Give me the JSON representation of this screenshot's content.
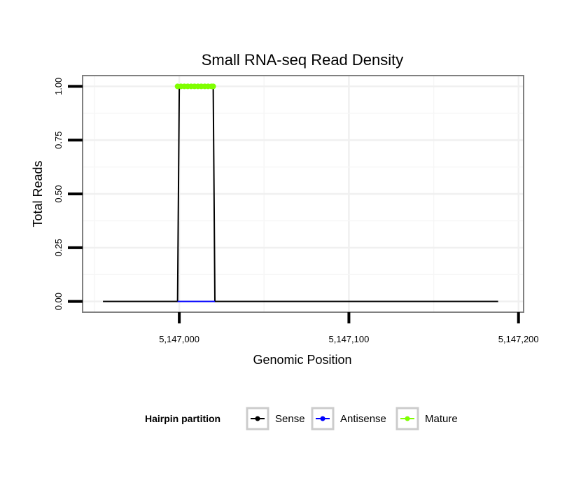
{
  "chart_data": {
    "type": "line",
    "title": "Small RNA-seq Read Density",
    "xlabel": "Genomic Position",
    "ylabel": "Total Reads",
    "xlim": [
      5146943,
      5147203
    ],
    "ylim": [
      -0.05,
      1.05
    ],
    "x_ticks": [
      {
        "value": 5147000,
        "label": "5,147,000"
      },
      {
        "value": 5147100,
        "label": "5,147,100"
      },
      {
        "value": 5147200,
        "label": "5,147,200"
      }
    ],
    "y_ticks": [
      {
        "value": 0.0,
        "label": "0.00"
      },
      {
        "value": 0.25,
        "label": "0.25"
      },
      {
        "value": 0.5,
        "label": "0.50"
      },
      {
        "value": 0.75,
        "label": "0.75"
      },
      {
        "value": 1.0,
        "label": "1.00"
      }
    ],
    "grid": true,
    "legend": {
      "title": "Hairpin partition",
      "position": "bottom",
      "entries": [
        {
          "name": "Sense",
          "color": "#000000"
        },
        {
          "name": "Antisense",
          "color": "#0000ff"
        },
        {
          "name": "Mature",
          "color": "#7fff00"
        }
      ]
    },
    "series": [
      {
        "name": "Sense",
        "color": "#000000",
        "x": [
          5146955,
          5146999,
          5147000,
          5147020,
          5147021,
          5147188
        ],
        "y": [
          0,
          0,
          1,
          1,
          0,
          0
        ]
      },
      {
        "name": "Antisense",
        "color": "#0000ff",
        "x": [
          5146999,
          5147021
        ],
        "y": [
          0,
          0
        ]
      },
      {
        "name": "Mature",
        "color": "#7fff00",
        "x": [
          5146999,
          5147001,
          5147003,
          5147005,
          5147007,
          5147009,
          5147011,
          5147013,
          5147015,
          5147017,
          5147019,
          5147020
        ],
        "y": [
          1,
          1,
          1,
          1,
          1,
          1,
          1,
          1,
          1,
          1,
          1,
          1
        ]
      }
    ]
  }
}
